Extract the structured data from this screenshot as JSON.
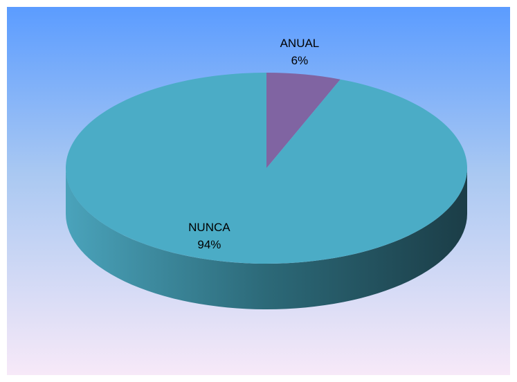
{
  "chart_data": {
    "type": "pie",
    "categories": [
      "ANUAL",
      "NUNCA"
    ],
    "values": [
      6,
      94
    ],
    "value_labels": [
      "6%",
      "94%"
    ],
    "colors": [
      "#8064a2",
      "#4bacc6"
    ]
  }
}
